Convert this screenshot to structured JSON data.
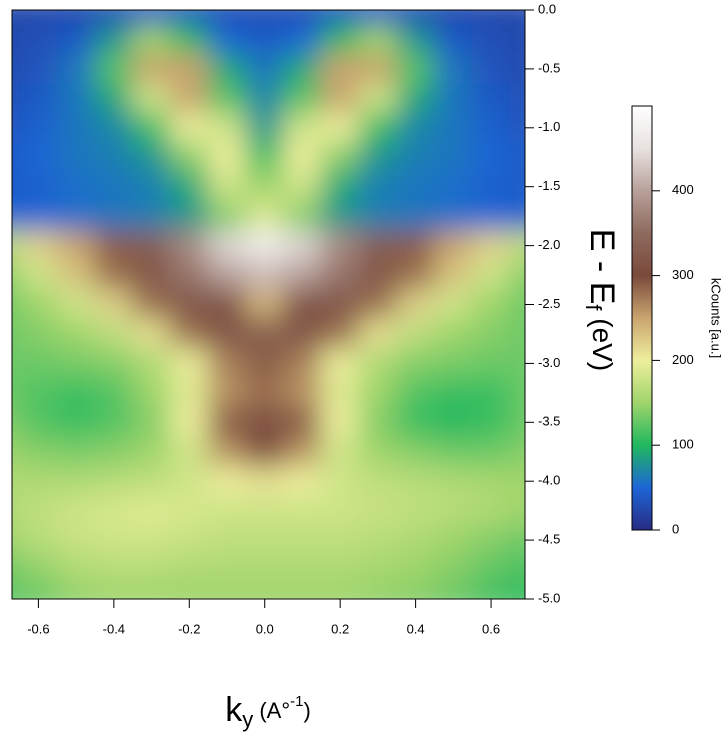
{
  "chart_data": {
    "type": "heatmap",
    "xlabel": [
      "k",
      "y",
      " (A°",
      "-1",
      ")"
    ],
    "ylabel": [
      "E - E",
      "f",
      " (eV)"
    ],
    "zlabel": "kCounts [a.u.]",
    "x": [
      -0.7,
      -0.6,
      -0.5,
      -0.4,
      -0.3,
      -0.2,
      -0.1,
      0.0,
      0.1,
      0.2,
      0.3,
      0.4,
      0.5,
      0.6,
      0.7
    ],
    "y": [
      0,
      -0.25,
      -0.5,
      -0.75,
      -1.0,
      -1.25,
      -1.5,
      -1.75,
      -2.0,
      -2.25,
      -2.5,
      -2.75,
      -3.0,
      -3.25,
      -3.5,
      -3.75,
      -4.0,
      -4.25,
      -4.5,
      -4.75,
      -5.0
    ],
    "z": [
      [
        25,
        25,
        25,
        30,
        40,
        35,
        30,
        30,
        30,
        35,
        40,
        30,
        25,
        25,
        25
      ],
      [
        25,
        30,
        40,
        80,
        150,
        100,
        50,
        40,
        50,
        100,
        150,
        80,
        40,
        30,
        25
      ],
      [
        25,
        35,
        60,
        120,
        250,
        250,
        90,
        60,
        90,
        250,
        250,
        120,
        60,
        35,
        25
      ],
      [
        30,
        40,
        60,
        90,
        180,
        250,
        120,
        70,
        120,
        250,
        180,
        90,
        60,
        40,
        30
      ],
      [
        35,
        45,
        60,
        70,
        110,
        200,
        180,
        80,
        180,
        200,
        110,
        70,
        60,
        45,
        35
      ],
      [
        40,
        50,
        60,
        65,
        80,
        140,
        200,
        110,
        200,
        140,
        80,
        65,
        60,
        50,
        40
      ],
      [
        40,
        45,
        55,
        60,
        65,
        90,
        180,
        150,
        180,
        90,
        65,
        60,
        55,
        45,
        40
      ],
      [
        45,
        50,
        55,
        60,
        65,
        80,
        140,
        190,
        140,
        80,
        65,
        60,
        55,
        50,
        45
      ],
      [
        170,
        220,
        250,
        290,
        330,
        380,
        440,
        470,
        440,
        380,
        330,
        290,
        250,
        220,
        170
      ],
      [
        140,
        180,
        230,
        280,
        320,
        360,
        400,
        420,
        400,
        360,
        320,
        280,
        230,
        180,
        140
      ],
      [
        130,
        150,
        180,
        220,
        280,
        320,
        310,
        240,
        310,
        320,
        280,
        220,
        180,
        150,
        130
      ],
      [
        130,
        140,
        150,
        170,
        210,
        280,
        320,
        330,
        320,
        280,
        210,
        170,
        150,
        140,
        130
      ],
      [
        130,
        130,
        135,
        140,
        160,
        200,
        270,
        290,
        270,
        200,
        160,
        140,
        135,
        130,
        130
      ],
      [
        130,
        120,
        110,
        120,
        150,
        190,
        260,
        280,
        260,
        190,
        150,
        120,
        110,
        110,
        130
      ],
      [
        140,
        120,
        110,
        120,
        140,
        200,
        290,
        310,
        290,
        200,
        140,
        110,
        100,
        110,
        130
      ],
      [
        150,
        140,
        135,
        140,
        150,
        180,
        260,
        300,
        260,
        180,
        150,
        140,
        130,
        130,
        140
      ],
      [
        160,
        160,
        160,
        165,
        170,
        180,
        200,
        210,
        200,
        180,
        170,
        165,
        160,
        155,
        150
      ],
      [
        160,
        170,
        180,
        185,
        190,
        185,
        180,
        180,
        180,
        180,
        175,
        170,
        165,
        160,
        150
      ],
      [
        150,
        165,
        175,
        180,
        180,
        175,
        170,
        170,
        170,
        170,
        165,
        160,
        150,
        140,
        130
      ],
      [
        130,
        145,
        160,
        165,
        165,
        160,
        160,
        160,
        160,
        160,
        155,
        150,
        140,
        125,
        115
      ],
      [
        120,
        130,
        145,
        150,
        150,
        150,
        150,
        150,
        150,
        150,
        145,
        140,
        130,
        115,
        105
      ]
    ],
    "xlim": [
      -0.67,
      0.69
    ],
    "ylim": [
      -5,
      0
    ],
    "zlim": [
      0,
      500
    ],
    "xticks": [
      -0.6,
      -0.4,
      -0.2,
      {
        "value": 0,
        "label": "0.0"
      },
      0.2,
      0.4,
      0.6
    ],
    "yticks": [
      {
        "value": 0,
        "label": "0.0"
      },
      -0.5,
      {
        "value": -1,
        "label": "-1.0"
      },
      -1.5,
      {
        "value": -2,
        "label": "-2.0"
      },
      -2.5,
      {
        "value": -3,
        "label": "-3.0"
      },
      -3.5,
      {
        "value": -4,
        "label": "-4.0"
      },
      -4.5,
      {
        "value": -5,
        "label": "-5.0"
      }
    ],
    "zticks": [
      0,
      100,
      200,
      300,
      400
    ],
    "colors": [
      "#282c84",
      "#1d66d6",
      "#20b85e",
      "#9fd46b",
      "#eeee9c",
      "#c9a46e",
      "#7a4a3c",
      "#8e6a5e",
      "#b8a09a",
      "#e8e2e0",
      "#ffffff"
    ]
  }
}
